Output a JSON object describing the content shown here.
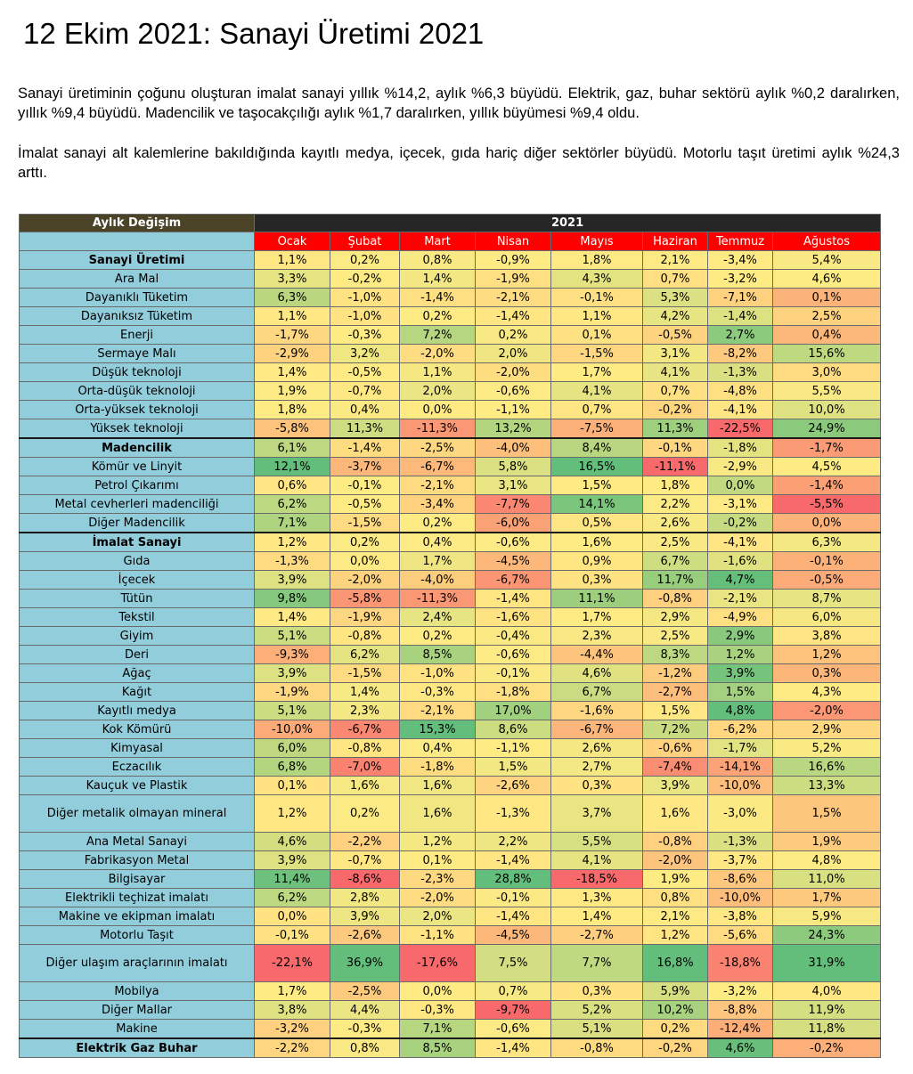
{
  "title": "12 Ekim 2021: Sanayi Üretimi 2021",
  "paragraphs": [
    "Sanayi üretiminin çoğunu oluşturan imalat sanayi yıllık %14,2, aylık %6,3 büyüdü. Elektrik, gaz, buhar sektörü aylık %0,2 daralırken, yıllık %9,4 büyüdü. Madencilik ve taşocakçılığı aylık %1,7 daralırken, yıllık büyümesi %9,4 oldu.",
    "İmalat sanayi alt kalemlerine bakıldığında kayıtlı medya, içecek, gıda hariç diğer sektörler büyüdü. Motorlu taşıt üretimi aylık %24,3 arttı."
  ],
  "table": {
    "corner_label": "Aylık Değişim",
    "year": "2021",
    "months": [
      "Ocak",
      "Şubat",
      "Mart",
      "Nisan",
      "Mayıs",
      "Haziran",
      "Temmuz",
      "Ağustos"
    ],
    "rows": [
      {
        "label": "Sanayi Üretimi",
        "bold": true,
        "values": [
          "1,1%",
          "0,2%",
          "0,8%",
          "-0,9%",
          "1,8%",
          "2,1%",
          "-3,4%",
          "5,4%"
        ]
      },
      {
        "label": "Ara Mal",
        "values": [
          "3,3%",
          "-0,2%",
          "1,4%",
          "-1,9%",
          "4,3%",
          "0,7%",
          "-3,2%",
          "4,6%"
        ]
      },
      {
        "label": "Dayanıklı Tüketim",
        "values": [
          "6,3%",
          "-1,0%",
          "-1,4%",
          "-2,1%",
          "-0,1%",
          "5,3%",
          "-7,1%",
          "0,1%"
        ]
      },
      {
        "label": "Dayanıksız Tüketim",
        "values": [
          "1,1%",
          "-1,0%",
          "0,2%",
          "-1,4%",
          "1,1%",
          "4,2%",
          "-1,4%",
          "2,5%"
        ]
      },
      {
        "label": "Enerji",
        "values": [
          "-1,7%",
          "-0,3%",
          "7,2%",
          "0,2%",
          "0,1%",
          "-0,5%",
          "2,7%",
          "0,4%"
        ]
      },
      {
        "label": "Sermaye Malı",
        "values": [
          "-2,9%",
          "3,2%",
          "-2,0%",
          "2,0%",
          "-1,5%",
          "3,1%",
          "-8,2%",
          "15,6%"
        ]
      },
      {
        "label": "Düşük teknoloji",
        "values": [
          "1,4%",
          "-0,5%",
          "1,1%",
          "-2,0%",
          "1,7%",
          "4,1%",
          "-1,3%",
          "3,0%"
        ]
      },
      {
        "label": "Orta-düşük teknoloji",
        "values": [
          "1,9%",
          "-0,7%",
          "2,0%",
          "-0,6%",
          "4,1%",
          "0,7%",
          "-4,8%",
          "5,5%"
        ]
      },
      {
        "label": "Orta-yüksek teknoloji",
        "values": [
          "1,8%",
          "0,4%",
          "0,0%",
          "-1,1%",
          "0,7%",
          "-0,2%",
          "-4,1%",
          "10,0%"
        ]
      },
      {
        "label": "Yüksek teknoloji",
        "thick": true,
        "values": [
          "-5,8%",
          "11,3%",
          "-11,3%",
          "13,2%",
          "-7,5%",
          "11,3%",
          "-22,5%",
          "24,9%"
        ]
      },
      {
        "label": "Madencilik",
        "bold": true,
        "values": [
          "6,1%",
          "-1,4%",
          "-2,5%",
          "-4,0%",
          "8,4%",
          "-0,1%",
          "-1,8%",
          "-1,7%"
        ]
      },
      {
        "label": "Kömür ve Linyit",
        "values": [
          "12,1%",
          "-3,7%",
          "-6,7%",
          "5,8%",
          "16,5%",
          "-11,1%",
          "-2,9%",
          "4,5%"
        ]
      },
      {
        "label": "Petrol Çıkarımı",
        "values": [
          "0,6%",
          "-0,1%",
          "-2,1%",
          "3,1%",
          "1,5%",
          "1,8%",
          "0,0%",
          "-1,4%"
        ]
      },
      {
        "label": "Metal cevherleri madenciliği",
        "values": [
          "6,2%",
          "-0,5%",
          "-3,4%",
          "-7,7%",
          "14,1%",
          "2,2%",
          "-3,1%",
          "-5,5%"
        ]
      },
      {
        "label": "Diğer Madencilik",
        "thick": true,
        "values": [
          "7,1%",
          "-1,5%",
          "0,2%",
          "-6,0%",
          "0,5%",
          "2,6%",
          "-0,2%",
          "0,0%"
        ]
      },
      {
        "label": "İmalat Sanayi",
        "bold": true,
        "values": [
          "1,2%",
          "0,2%",
          "0,4%",
          "-0,6%",
          "1,6%",
          "2,5%",
          "-4,1%",
          "6,3%"
        ]
      },
      {
        "label": "Gıda",
        "values": [
          "-1,3%",
          "0,0%",
          "1,7%",
          "-4,5%",
          "0,9%",
          "6,7%",
          "-1,6%",
          "-0,1%"
        ]
      },
      {
        "label": "İçecek",
        "values": [
          "3,9%",
          "-2,0%",
          "-4,0%",
          "-6,7%",
          "0,3%",
          "11,7%",
          "4,7%",
          "-0,5%"
        ]
      },
      {
        "label": "Tütün",
        "values": [
          "9,8%",
          "-5,8%",
          "-11,3%",
          "-1,4%",
          "11,1%",
          "-0,8%",
          "-2,1%",
          "8,7%"
        ]
      },
      {
        "label": "Tekstil",
        "values": [
          "1,4%",
          "-1,9%",
          "2,4%",
          "-1,6%",
          "1,7%",
          "2,9%",
          "-4,9%",
          "6,0%"
        ]
      },
      {
        "label": "Giyim",
        "values": [
          "5,1%",
          "-0,8%",
          "0,2%",
          "-0,4%",
          "2,3%",
          "2,5%",
          "2,9%",
          "3,8%"
        ]
      },
      {
        "label": "Deri",
        "values": [
          "-9,3%",
          "6,2%",
          "8,5%",
          "-0,6%",
          "-4,4%",
          "8,3%",
          "1,2%",
          "1,2%"
        ]
      },
      {
        "label": "Ağaç",
        "values": [
          "3,9%",
          "-1,5%",
          "-1,0%",
          "-0,1%",
          "4,6%",
          "-1,2%",
          "3,9%",
          "0,3%"
        ]
      },
      {
        "label": "Kağıt",
        "values": [
          "-1,9%",
          "1,4%",
          "-0,3%",
          "-1,8%",
          "6,7%",
          "-2,7%",
          "1,5%",
          "4,3%"
        ]
      },
      {
        "label": "Kayıtlı medya",
        "values": [
          "5,1%",
          "2,3%",
          "-2,1%",
          "17,0%",
          "-1,6%",
          "1,5%",
          "4,8%",
          "-2,0%"
        ]
      },
      {
        "label": "Kok Kömürü",
        "values": [
          "-10,0%",
          "-6,7%",
          "15,3%",
          "8,6%",
          "-6,7%",
          "7,2%",
          "-6,2%",
          "2,9%"
        ]
      },
      {
        "label": "Kimyasal",
        "values": [
          "6,0%",
          "-0,8%",
          "0,4%",
          "-1,1%",
          "2,6%",
          "-0,6%",
          "-1,7%",
          "5,2%"
        ]
      },
      {
        "label": "Eczacılık",
        "values": [
          "6,8%",
          "-7,0%",
          "-1,8%",
          "1,5%",
          "2,7%",
          "-7,4%",
          "-14,1%",
          "16,6%"
        ]
      },
      {
        "label": "Kauçuk ve Plastik",
        "values": [
          "0,1%",
          "1,6%",
          "1,6%",
          "-2,6%",
          "0,3%",
          "3,9%",
          "-10,0%",
          "13,3%"
        ]
      },
      {
        "label": "Diğer metalik olmayan mineral",
        "tall": true,
        "values": [
          "1,2%",
          "0,2%",
          "1,6%",
          "-1,3%",
          "3,7%",
          "1,6%",
          "-3,0%",
          "1,5%"
        ]
      },
      {
        "label": "Ana Metal Sanayi",
        "values": [
          "4,6%",
          "-2,2%",
          "1,2%",
          "2,2%",
          "5,5%",
          "-0,8%",
          "-1,3%",
          "1,9%"
        ]
      },
      {
        "label": "Fabrikasyon Metal",
        "values": [
          "3,9%",
          "-0,7%",
          "0,1%",
          "-1,4%",
          "4,1%",
          "-2,0%",
          "-3,7%",
          "4,8%"
        ]
      },
      {
        "label": "Bilgisayar",
        "values": [
          "11,4%",
          "-8,6%",
          "-2,3%",
          "28,8%",
          "-18,5%",
          "1,9%",
          "-8,6%",
          "11,0%"
        ]
      },
      {
        "label": "Elektrikli teçhizat imalatı",
        "values": [
          "6,2%",
          "2,8%",
          "-2,0%",
          "-0,1%",
          "1,3%",
          "0,8%",
          "-10,0%",
          "1,7%"
        ]
      },
      {
        "label": "Makine ve ekipman imalatı",
        "values": [
          "0,0%",
          "3,9%",
          "2,0%",
          "-1,4%",
          "1,4%",
          "2,1%",
          "-3,8%",
          "5,9%"
        ]
      },
      {
        "label": "Motorlu Taşıt",
        "values": [
          "-0,1%",
          "-2,6%",
          "-1,1%",
          "-4,5%",
          "-2,7%",
          "1,2%",
          "-5,6%",
          "24,3%"
        ]
      },
      {
        "label": "Diğer ulaşım araçlarının imalatı",
        "tall": true,
        "values": [
          "-22,1%",
          "36,9%",
          "-17,6%",
          "7,5%",
          "7,7%",
          "16,8%",
          "-18,8%",
          "31,9%"
        ]
      },
      {
        "label": "Mobilya",
        "values": [
          "1,7%",
          "-2,5%",
          "0,0%",
          "0,7%",
          "0,3%",
          "5,9%",
          "-3,2%",
          "4,0%"
        ]
      },
      {
        "label": "Diğer Mallar",
        "values": [
          "3,8%",
          "4,4%",
          "-0,3%",
          "-9,7%",
          "5,2%",
          "10,2%",
          "-8,8%",
          "11,9%"
        ]
      },
      {
        "label": "Makine",
        "thick": true,
        "values": [
          "-3,2%",
          "-0,3%",
          "7,1%",
          "-0,6%",
          "5,1%",
          "0,2%",
          "-12,4%",
          "11,8%"
        ]
      },
      {
        "label": "Elektrik Gaz Buhar",
        "bold": true,
        "values": [
          "-2,2%",
          "0,8%",
          "8,5%",
          "-1,4%",
          "-0,8%",
          "-0,2%",
          "4,6%",
          "-0,2%"
        ]
      }
    ]
  }
}
